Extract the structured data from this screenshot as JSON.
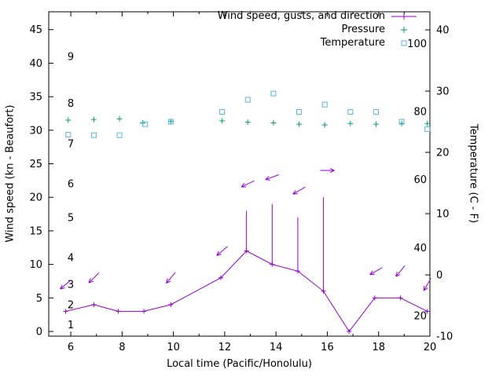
{
  "page": {
    "background": "#ffffff"
  },
  "chart_data": {
    "type": "line",
    "title": "",
    "xlabel": "Local time (Pacific/Honolulu)",
    "ylabel_left": "Wind speed (kn - Beaufort)",
    "ylabel_right": "Temperature (C - F)",
    "grid": false,
    "legend_position": "top-right-inside",
    "x_range": [
      5.14,
      20
    ],
    "x_major_ticks": [
      6,
      8,
      10,
      12,
      14,
      16,
      18,
      20
    ],
    "x_minor_ticks": [
      7,
      9,
      11,
      13,
      15,
      17,
      19
    ],
    "y_left_range": [
      -0.7,
      47.66
    ],
    "y_left_ticks": [
      0,
      5,
      10,
      15,
      20,
      25,
      30,
      35,
      40,
      45
    ],
    "y_right_range_c": [
      -10,
      42.95
    ],
    "y_right_ticks": [
      -10,
      0,
      10,
      20,
      30,
      40
    ],
    "beaufort_scale_labels": [
      {
        "label": "1",
        "kn": 1
      },
      {
        "label": "2",
        "kn": 4
      },
      {
        "label": "3",
        "kn": 7
      },
      {
        "label": "4",
        "kn": 11
      },
      {
        "label": "5",
        "kn": 17
      },
      {
        "label": "6",
        "kn": 22
      },
      {
        "label": "7",
        "kn": 28
      },
      {
        "label": "8",
        "kn": 34
      },
      {
        "label": "9",
        "kn": 41
      }
    ],
    "fahrenheit_scale_labels": [
      {
        "label": "20",
        "f": 20
      },
      {
        "label": "40",
        "f": 40
      },
      {
        "label": "60",
        "f": 60
      },
      {
        "label": "80",
        "f": 80
      },
      {
        "label": "100",
        "f": 100
      }
    ],
    "series": [
      {
        "id": "wind",
        "name": "Wind speed, gusts, and direction",
        "color": "#9400d3",
        "axis": "left",
        "style": "line-with-plus-markers-and-gust-impulses",
        "points": [
          {
            "t": 5.8,
            "speed_kn": 3,
            "gust_kn": 3
          },
          {
            "t": 6.9,
            "speed_kn": 4,
            "gust_kn": 4
          },
          {
            "t": 7.85,
            "speed_kn": 3,
            "gust_kn": 3
          },
          {
            "t": 8.85,
            "speed_kn": 3,
            "gust_kn": 3
          },
          {
            "t": 9.9,
            "speed_kn": 4,
            "gust_kn": 4
          },
          {
            "t": 11.85,
            "speed_kn": 8,
            "gust_kn": 8
          },
          {
            "t": 12.85,
            "speed_kn": 12,
            "gust_kn": 18
          },
          {
            "t": 13.85,
            "speed_kn": 10,
            "gust_kn": 19
          },
          {
            "t": 14.85,
            "speed_kn": 9,
            "gust_kn": 17
          },
          {
            "t": 15.85,
            "speed_kn": 6,
            "gust_kn": 20
          },
          {
            "t": 16.85,
            "speed_kn": 0,
            "gust_kn": 0
          },
          {
            "t": 17.85,
            "speed_kn": 5,
            "gust_kn": 5
          },
          {
            "t": 18.85,
            "speed_kn": 5,
            "gust_kn": 5
          },
          {
            "t": 19.9,
            "speed_kn": 3,
            "gust_kn": 3
          }
        ],
        "direction_arrows": [
          {
            "t": 5.8,
            "y_kn": 7,
            "angle_deg": 220
          },
          {
            "t": 6.9,
            "y_kn": 8,
            "angle_deg": 225
          },
          {
            "t": 9.9,
            "y_kn": 8,
            "angle_deg": 230
          },
          {
            "t": 11.9,
            "y_kn": 12,
            "angle_deg": 220
          },
          {
            "t": 12.9,
            "y_kn": 22,
            "angle_deg": 205
          },
          {
            "t": 13.85,
            "y_kn": 23,
            "angle_deg": 200
          },
          {
            "t": 14.9,
            "y_kn": 21,
            "angle_deg": 210
          },
          {
            "t": 16.0,
            "y_kn": 24,
            "angle_deg": 0
          },
          {
            "t": 17.9,
            "y_kn": 9,
            "angle_deg": 210
          },
          {
            "t": 18.85,
            "y_kn": 9,
            "angle_deg": 230
          },
          {
            "t": 19.9,
            "y_kn": 7,
            "angle_deg": 240
          }
        ]
      },
      {
        "id": "pressure",
        "name": "Pressure",
        "color": "#009e73",
        "axis": "left",
        "marker": "plus",
        "points": [
          {
            "t": 5.9,
            "y": 31.5
          },
          {
            "t": 6.9,
            "y": 31.6
          },
          {
            "t": 7.9,
            "y": 31.7
          },
          {
            "t": 8.8,
            "y": 31.1
          },
          {
            "t": 9.9,
            "y": 31.3
          },
          {
            "t": 11.9,
            "y": 31.4
          },
          {
            "t": 12.9,
            "y": 31.2
          },
          {
            "t": 13.9,
            "y": 31.1
          },
          {
            "t": 14.9,
            "y": 30.9
          },
          {
            "t": 15.9,
            "y": 30.8
          },
          {
            "t": 16.9,
            "y": 31.0
          },
          {
            "t": 17.9,
            "y": 30.9
          },
          {
            "t": 18.9,
            "y": 31.0
          },
          {
            "t": 19.9,
            "y": 31.0
          }
        ]
      },
      {
        "id": "temperature",
        "name": "Temperature",
        "color": "#56b4e9",
        "axis": "right",
        "marker": "open-square",
        "points": [
          {
            "t": 5.9,
            "c": 22.9
          },
          {
            "t": 6.9,
            "c": 22.8
          },
          {
            "t": 7.9,
            "c": 22.8
          },
          {
            "t": 8.9,
            "c": 24.6
          },
          {
            "t": 9.9,
            "c": 25.0
          },
          {
            "t": 11.9,
            "c": 26.6
          },
          {
            "t": 12.9,
            "c": 28.6
          },
          {
            "t": 13.9,
            "c": 29.6
          },
          {
            "t": 14.9,
            "c": 26.6
          },
          {
            "t": 15.9,
            "c": 27.8
          },
          {
            "t": 16.9,
            "c": 26.6
          },
          {
            "t": 17.9,
            "c": 26.6
          },
          {
            "t": 18.9,
            "c": 25.0
          },
          {
            "t": 19.9,
            "c": 23.8
          }
        ]
      }
    ]
  },
  "legend": {
    "items": [
      {
        "label": "Wind speed, gusts, and direction"
      },
      {
        "label": "Pressure"
      },
      {
        "label": "Temperature"
      }
    ]
  }
}
